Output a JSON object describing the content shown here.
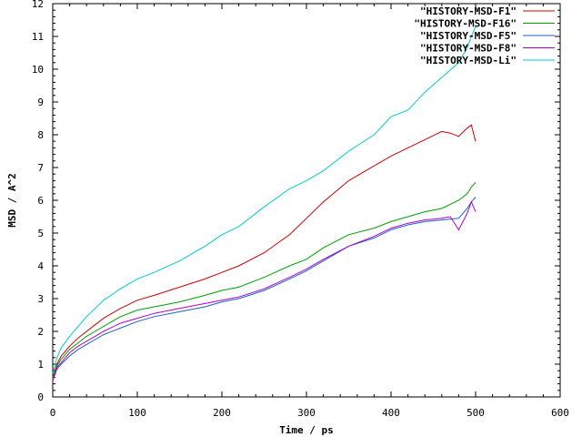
{
  "chart_data": {
    "type": "line",
    "xlabel": "Time / ps",
    "ylabel": "MSD / A^2",
    "xlim": [
      0,
      600
    ],
    "ylim": [
      0,
      12
    ],
    "xticks": [
      0,
      100,
      200,
      300,
      400,
      500,
      600
    ],
    "yticks": [
      0,
      1,
      2,
      3,
      4,
      5,
      6,
      7,
      8,
      9,
      10,
      11,
      12
    ],
    "grid": false,
    "legend_position": "top-right",
    "series": [
      {
        "name": "\"HISTORY-MSD-F1\"",
        "color": "#cc0000",
        "x": [
          0,
          5,
          10,
          20,
          30,
          40,
          50,
          60,
          80,
          100,
          120,
          150,
          180,
          200,
          220,
          250,
          280,
          300,
          320,
          350,
          380,
          400,
          420,
          440,
          460,
          470,
          480,
          490,
          495,
          500
        ],
        "y": [
          0.6,
          1.0,
          1.25,
          1.55,
          1.8,
          2.0,
          2.2,
          2.4,
          2.7,
          2.95,
          3.1,
          3.35,
          3.6,
          3.8,
          4.0,
          4.4,
          4.95,
          5.45,
          5.95,
          6.6,
          7.05,
          7.35,
          7.6,
          7.85,
          8.1,
          8.05,
          7.95,
          8.2,
          8.3,
          7.8
        ]
      },
      {
        "name": "\"HISTORY-MSD-F16\"",
        "color": "#00a000",
        "x": [
          0,
          5,
          10,
          20,
          30,
          40,
          50,
          60,
          80,
          100,
          120,
          150,
          180,
          200,
          220,
          250,
          280,
          300,
          320,
          350,
          380,
          400,
          420,
          440,
          460,
          480,
          490,
          495,
          500
        ],
        "y": [
          0.55,
          0.95,
          1.15,
          1.45,
          1.65,
          1.85,
          2.0,
          2.15,
          2.45,
          2.65,
          2.75,
          2.9,
          3.1,
          3.25,
          3.35,
          3.65,
          4.0,
          4.2,
          4.55,
          4.95,
          5.15,
          5.35,
          5.5,
          5.65,
          5.75,
          6.0,
          6.2,
          6.4,
          6.55
        ]
      },
      {
        "name": "\"HISTORY-MSD-F5\"",
        "color": "#1a5fc8",
        "x": [
          0,
          5,
          10,
          20,
          30,
          40,
          50,
          60,
          80,
          100,
          120,
          150,
          180,
          200,
          220,
          250,
          280,
          300,
          320,
          350,
          380,
          400,
          420,
          440,
          460,
          480,
          490,
          495,
          500
        ],
        "y": [
          0.5,
          0.85,
          1.0,
          1.25,
          1.45,
          1.6,
          1.75,
          1.9,
          2.1,
          2.3,
          2.45,
          2.6,
          2.75,
          2.9,
          3.0,
          3.25,
          3.6,
          3.85,
          4.15,
          4.6,
          4.85,
          5.1,
          5.25,
          5.35,
          5.4,
          5.45,
          5.75,
          5.95,
          6.1
        ]
      },
      {
        "name": "\"HISTORY-MSD-F8\"",
        "color": "#b000d0",
        "x": [
          0,
          5,
          10,
          20,
          30,
          40,
          50,
          60,
          80,
          100,
          120,
          150,
          180,
          200,
          220,
          250,
          280,
          300,
          320,
          350,
          380,
          400,
          420,
          440,
          460,
          470,
          480,
          490,
          495,
          500
        ],
        "y": [
          0.5,
          0.9,
          1.05,
          1.35,
          1.55,
          1.7,
          1.85,
          2.0,
          2.25,
          2.4,
          2.55,
          2.7,
          2.85,
          2.95,
          3.05,
          3.3,
          3.65,
          3.9,
          4.2,
          4.6,
          4.9,
          5.15,
          5.3,
          5.4,
          5.45,
          5.5,
          5.1,
          5.6,
          5.95,
          5.65
        ]
      },
      {
        "name": "\"HISTORY-MSD-Li\"",
        "color": "#00cccc",
        "x": [
          0,
          5,
          10,
          20,
          30,
          40,
          50,
          60,
          80,
          100,
          120,
          150,
          180,
          200,
          220,
          250,
          280,
          300,
          320,
          350,
          380,
          400,
          420,
          440,
          460,
          480,
          490,
          495,
          500
        ],
        "y": [
          0.7,
          1.2,
          1.5,
          1.85,
          2.15,
          2.45,
          2.7,
          2.95,
          3.3,
          3.6,
          3.8,
          4.15,
          4.6,
          4.95,
          5.2,
          5.8,
          6.35,
          6.6,
          6.9,
          7.5,
          8.0,
          8.55,
          8.75,
          9.3,
          9.75,
          10.2,
          10.65,
          11.0,
          11.3
        ]
      }
    ]
  }
}
